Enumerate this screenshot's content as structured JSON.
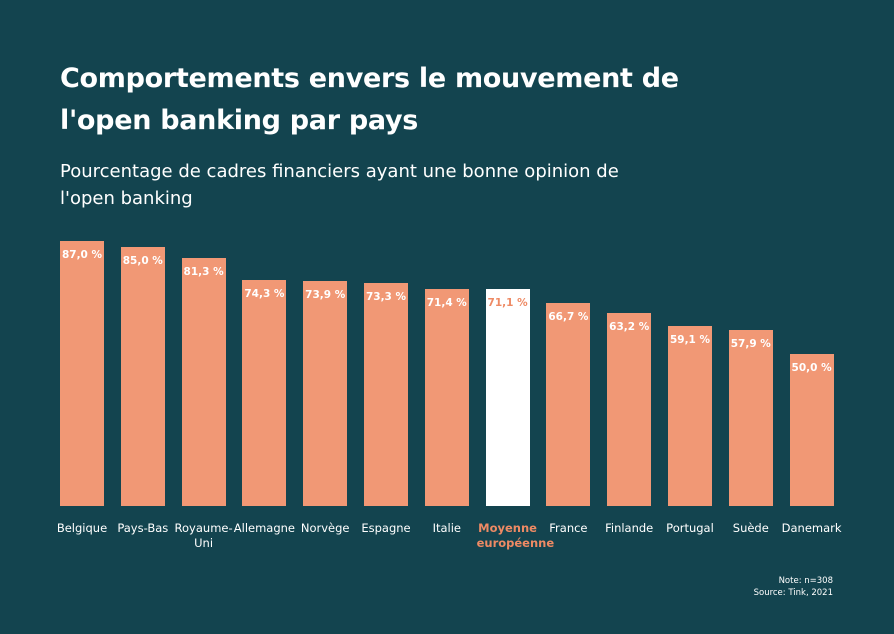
{
  "chart_data": {
    "type": "bar",
    "title": "Comportements envers le mouvement de l'open banking par pays",
    "subtitle": "Pourcentage de cadres financiers ayant une bonne opinion de l'open banking",
    "categories": [
      "Belgique",
      "Pays-Bas",
      "Royaume-Uni",
      "Allemagne",
      "Norvège",
      "Espagne",
      "Italie",
      "Moyenne européenne",
      "France",
      "Finlande",
      "Portugal",
      "Suède",
      "Danemark"
    ],
    "values": [
      87.0,
      85.0,
      81.3,
      74.3,
      73.9,
      73.3,
      71.4,
      71.1,
      66.7,
      63.2,
      59.1,
      57.9,
      50.0
    ],
    "value_labels": [
      "87,0 %",
      "85,0 %",
      "81,3 %",
      "74,3 %",
      "73,9 %",
      "73,3 %",
      "71,4 %",
      "71,1 %",
      "66,7 %",
      "63,2 %",
      "59,1 %",
      "57,9 %",
      "50,0 %"
    ],
    "colors": [
      "#f19875",
      "#f19875",
      "#f19875",
      "#f19875",
      "#f19875",
      "#f19875",
      "#f19875",
      "#ffffff",
      "#f19875",
      "#f19875",
      "#f19875",
      "#f19875",
      "#f19875"
    ],
    "label_colors": [
      "#ffffff",
      "#ffffff",
      "#ffffff",
      "#ffffff",
      "#ffffff",
      "#ffffff",
      "#ffffff",
      "#ee8a64",
      "#ffffff",
      "#ffffff",
      "#ffffff",
      "#ffffff",
      "#ffffff"
    ],
    "note": "Note:  n=308",
    "source": "Source: Tink, 2021"
  }
}
